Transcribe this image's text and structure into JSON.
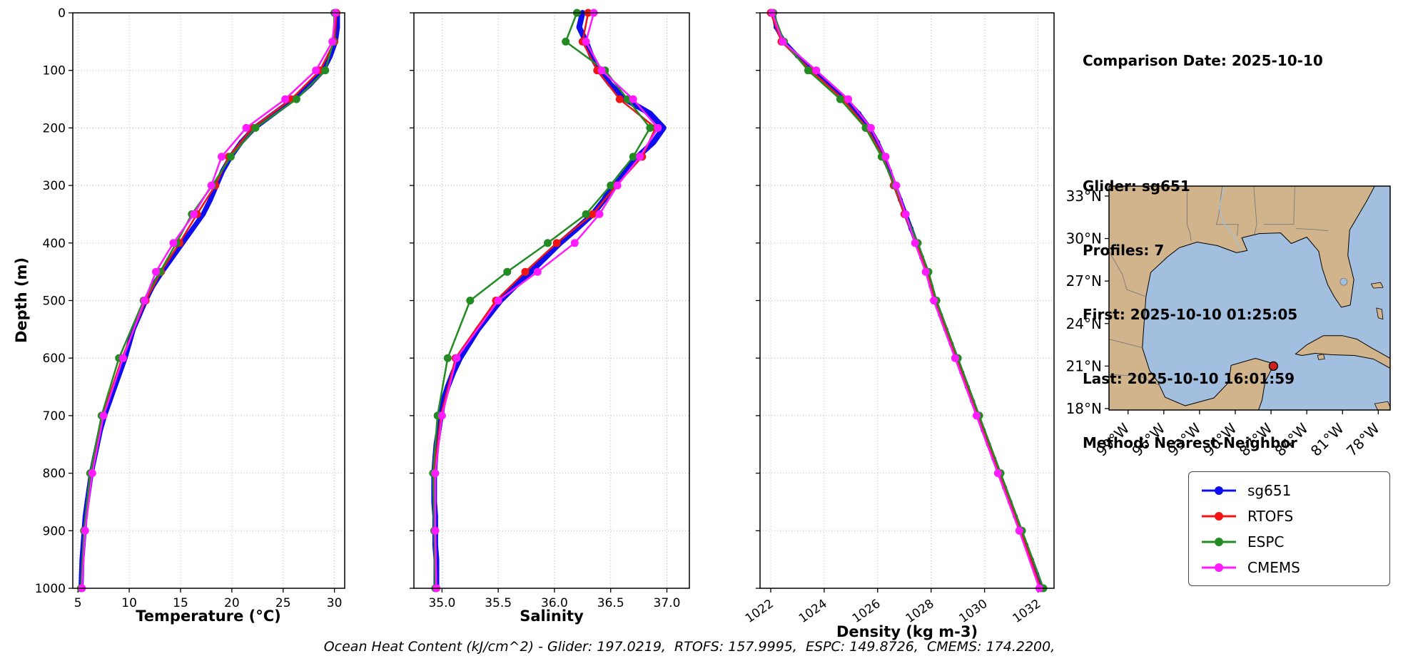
{
  "info": {
    "comparison_date": "Comparison Date: 2025-10-10",
    "glider": "Glider: sg651",
    "profiles": "Profiles: 7",
    "first": "First: 2025-10-10 01:25:05",
    "last": "Last: 2025-10-10 16:01:59",
    "method": "Method: Nearest-Neighbor"
  },
  "footer": {
    "ohc": "Ocean Heat Content (kJ/cm^2) - Glider: 197.0219,  RTOFS: 157.9995,  ESPC: 149.8726,  CMEMS: 174.2200,"
  },
  "legend": {
    "entries": [
      {
        "label": "sg651",
        "color": "#0d0df0"
      },
      {
        "label": "RTOFS",
        "color": "#f01414"
      },
      {
        "label": "ESPC",
        "color": "#228b22"
      },
      {
        "label": "CMEMS",
        "color": "#ff1aff"
      }
    ]
  },
  "chart_data": [
    {
      "type": "line",
      "id": "temperature",
      "xlabel": "Temperature (°C)",
      "ylabel": "Depth (m)",
      "xlim": [
        4.5,
        31
      ],
      "ylim": [
        0,
        1000
      ],
      "grid": true,
      "show_y_tick_labels": true,
      "x_ticks": [
        {
          "v": 5,
          "label": "5"
        },
        {
          "v": 10,
          "label": "10"
        },
        {
          "v": 15,
          "label": "15"
        },
        {
          "v": 20,
          "label": "20"
        },
        {
          "v": 25,
          "label": "25"
        },
        {
          "v": 30,
          "label": "30"
        }
      ],
      "y_ticks": [
        {
          "v": 0,
          "label": "0"
        },
        {
          "v": 100,
          "label": "100"
        },
        {
          "v": 200,
          "label": "200"
        },
        {
          "v": 300,
          "label": "300"
        },
        {
          "v": 400,
          "label": "400"
        },
        {
          "v": 500,
          "label": "500"
        },
        {
          "v": 600,
          "label": "600"
        },
        {
          "v": 700,
          "label": "700"
        },
        {
          "v": 800,
          "label": "800"
        },
        {
          "v": 900,
          "label": "900"
        },
        {
          "v": 1000,
          "label": "1000"
        }
      ],
      "series": [
        {
          "name": "sg651",
          "color": "#0d0df0",
          "line_width": 7,
          "marker_size": 3.5,
          "depths": [
            0,
            25,
            50,
            75,
            100,
            125,
            150,
            175,
            200,
            225,
            250,
            275,
            300,
            325,
            350,
            375,
            400,
            425,
            450,
            475,
            500,
            525,
            550,
            575,
            600,
            625,
            650,
            675,
            700,
            725,
            750,
            775,
            800,
            825,
            850,
            875,
            900,
            925,
            950,
            975,
            1000
          ],
          "values": [
            30.3,
            30.3,
            30.1,
            29.6,
            28.9,
            27.6,
            26.0,
            24.1,
            22.2,
            20.9,
            19.9,
            19.1,
            18.5,
            17.9,
            17.2,
            16.2,
            15.2,
            14.2,
            13.2,
            12.3,
            11.6,
            11.0,
            10.4,
            10.0,
            9.6,
            9.1,
            8.6,
            8.1,
            7.6,
            7.2,
            6.9,
            6.6,
            6.3,
            6.1,
            5.9,
            5.7,
            5.6,
            5.5,
            5.4,
            5.35,
            5.3
          ]
        },
        {
          "name": "RTOFS",
          "color": "#f01414",
          "line_width": 2.5,
          "marker_size": 5.5,
          "depths": [
            0,
            50,
            100,
            150,
            200,
            250,
            300,
            350,
            400,
            450,
            500,
            600,
            700,
            800,
            900,
            1000
          ],
          "values": [
            30.2,
            30.0,
            28.6,
            25.8,
            22.0,
            19.7,
            18.4,
            16.6,
            14.9,
            13.1,
            11.6,
            9.3,
            7.4,
            6.2,
            5.6,
            5.3
          ]
        },
        {
          "name": "ESPC",
          "color": "#228b22",
          "line_width": 2.5,
          "marker_size": 5.5,
          "depths": [
            0,
            50,
            100,
            150,
            200,
            250,
            300,
            350,
            400,
            450,
            500,
            600,
            700,
            800,
            900,
            1000
          ],
          "values": [
            30.0,
            29.9,
            29.1,
            26.3,
            22.3,
            19.9,
            18.1,
            16.1,
            14.6,
            13.0,
            11.4,
            9.0,
            7.3,
            6.2,
            5.6,
            5.3
          ]
        },
        {
          "name": "CMEMS",
          "color": "#ff1aff",
          "line_width": 2.5,
          "marker_size": 5.5,
          "depths": [
            0,
            50,
            100,
            150,
            200,
            250,
            300,
            350,
            400,
            450,
            500,
            600,
            700,
            800,
            900,
            1000
          ],
          "values": [
            30.1,
            29.8,
            28.2,
            25.2,
            21.4,
            19.0,
            18.0,
            16.3,
            14.3,
            12.6,
            11.5,
            9.4,
            7.5,
            6.4,
            5.7,
            5.4
          ]
        }
      ]
    },
    {
      "type": "line",
      "id": "salinity",
      "xlabel": "Salinity",
      "ylabel": "Depth (m)",
      "xlim": [
        34.75,
        37.2
      ],
      "ylim": [
        0,
        1000
      ],
      "grid": true,
      "show_y_tick_labels": false,
      "x_ticks": [
        {
          "v": 35.0,
          "label": "35.0"
        },
        {
          "v": 35.5,
          "label": "35.5"
        },
        {
          "v": 36.0,
          "label": "36.0"
        },
        {
          "v": 36.5,
          "label": "36.5"
        },
        {
          "v": 37.0,
          "label": "37.0"
        }
      ],
      "y_ticks": [
        {
          "v": 0,
          "label": "0"
        },
        {
          "v": 100,
          "label": "100"
        },
        {
          "v": 200,
          "label": "200"
        },
        {
          "v": 300,
          "label": "300"
        },
        {
          "v": 400,
          "label": "400"
        },
        {
          "v": 500,
          "label": "500"
        },
        {
          "v": 600,
          "label": "600"
        },
        {
          "v": 700,
          "label": "700"
        },
        {
          "v": 800,
          "label": "800"
        },
        {
          "v": 900,
          "label": "900"
        },
        {
          "v": 1000,
          "label": "1000"
        }
      ],
      "series": [
        {
          "name": "sg651",
          "color": "#0d0df0",
          "line_width": 8,
          "marker_size": 3.5,
          "depths": [
            0,
            25,
            50,
            75,
            100,
            125,
            150,
            175,
            200,
            225,
            250,
            275,
            300,
            325,
            350,
            375,
            400,
            425,
            450,
            475,
            500,
            525,
            550,
            575,
            600,
            625,
            650,
            675,
            700,
            725,
            750,
            775,
            800,
            825,
            850,
            875,
            900,
            925,
            950,
            975,
            1000
          ],
          "values": [
            36.25,
            36.22,
            36.28,
            36.33,
            36.4,
            36.5,
            36.63,
            36.85,
            36.97,
            36.88,
            36.74,
            36.62,
            36.52,
            36.44,
            36.34,
            36.2,
            36.05,
            35.92,
            35.79,
            35.65,
            35.52,
            35.42,
            35.32,
            35.24,
            35.16,
            35.1,
            35.05,
            35.01,
            34.99,
            34.97,
            34.95,
            34.94,
            34.93,
            34.93,
            34.93,
            34.94,
            34.94,
            34.94,
            34.95,
            34.95,
            34.95
          ]
        },
        {
          "name": "RTOFS",
          "color": "#f01414",
          "line_width": 2.5,
          "marker_size": 5.5,
          "depths": [
            0,
            50,
            100,
            150,
            200,
            250,
            300,
            350,
            400,
            450,
            500,
            600,
            700,
            800,
            900,
            1000
          ],
          "values": [
            36.3,
            36.25,
            36.38,
            36.58,
            36.9,
            36.78,
            36.55,
            36.34,
            36.02,
            35.74,
            35.48,
            35.12,
            34.99,
            34.93,
            34.94,
            34.95
          ]
        },
        {
          "name": "ESPC",
          "color": "#228b22",
          "line_width": 2.5,
          "marker_size": 5.5,
          "depths": [
            0,
            50,
            100,
            150,
            200,
            250,
            300,
            350,
            400,
            450,
            500,
            600,
            700,
            800,
            900,
            1000
          ],
          "values": [
            36.2,
            36.1,
            36.45,
            36.65,
            36.85,
            36.7,
            36.5,
            36.28,
            35.94,
            35.58,
            35.25,
            35.05,
            34.96,
            34.92,
            34.93,
            34.94
          ]
        },
        {
          "name": "CMEMS",
          "color": "#ff1aff",
          "line_width": 2.5,
          "marker_size": 5.5,
          "depths": [
            0,
            50,
            100,
            150,
            200,
            250,
            300,
            350,
            400,
            450,
            500,
            600,
            700,
            800,
            900,
            1000
          ],
          "values": [
            36.35,
            36.28,
            36.42,
            36.7,
            36.92,
            36.76,
            36.56,
            36.4,
            36.18,
            35.85,
            35.5,
            35.13,
            35.0,
            34.94,
            34.94,
            34.95
          ]
        }
      ]
    },
    {
      "type": "line",
      "id": "density",
      "xlabel": "Density (kg m-3)",
      "ylabel": "Depth (m)",
      "xlim": [
        1021.6,
        1032.6
      ],
      "ylim": [
        0,
        1000
      ],
      "grid": true,
      "show_y_tick_labels": false,
      "x_tick_rotation": 35,
      "x_ticks": [
        {
          "v": 1022,
          "label": "1022"
        },
        {
          "v": 1024,
          "label": "1024"
        },
        {
          "v": 1026,
          "label": "1026"
        },
        {
          "v": 1028,
          "label": "1028"
        },
        {
          "v": 1030,
          "label": "1030"
        },
        {
          "v": 1032,
          "label": "1032"
        }
      ],
      "y_ticks": [
        {
          "v": 0,
          "label": "0"
        },
        {
          "v": 100,
          "label": "100"
        },
        {
          "v": 200,
          "label": "200"
        },
        {
          "v": 300,
          "label": "300"
        },
        {
          "v": 400,
          "label": "400"
        },
        {
          "v": 500,
          "label": "500"
        },
        {
          "v": 600,
          "label": "600"
        },
        {
          "v": 700,
          "label": "700"
        },
        {
          "v": 800,
          "label": "800"
        },
        {
          "v": 900,
          "label": "900"
        },
        {
          "v": 1000,
          "label": "1000"
        }
      ],
      "series": [
        {
          "name": "sg651",
          "color": "#0d0df0",
          "line_width": 6,
          "marker_size": 3.5,
          "depths": [
            0,
            25,
            50,
            75,
            100,
            125,
            150,
            175,
            200,
            225,
            250,
            275,
            300,
            325,
            350,
            375,
            400,
            425,
            450,
            475,
            500,
            525,
            550,
            575,
            600,
            625,
            650,
            675,
            700,
            725,
            750,
            775,
            800,
            825,
            850,
            875,
            900,
            925,
            950,
            975,
            1000
          ],
          "values": [
            1022.1,
            1022.2,
            1022.5,
            1023.0,
            1023.6,
            1024.2,
            1024.8,
            1025.3,
            1025.7,
            1026.0,
            1026.25,
            1026.45,
            1026.65,
            1026.85,
            1027.05,
            1027.25,
            1027.45,
            1027.65,
            1027.85,
            1028.0,
            1028.15,
            1028.35,
            1028.55,
            1028.75,
            1028.95,
            1029.15,
            1029.35,
            1029.55,
            1029.75,
            1029.95,
            1030.15,
            1030.35,
            1030.55,
            1030.75,
            1030.95,
            1031.15,
            1031.35,
            1031.55,
            1031.75,
            1031.95,
            1032.15
          ]
        },
        {
          "name": "RTOFS",
          "color": "#f01414",
          "line_width": 2.5,
          "marker_size": 5.5,
          "depths": [
            0,
            50,
            100,
            150,
            200,
            250,
            300,
            350,
            400,
            450,
            500,
            600,
            700,
            800,
            900,
            1000
          ],
          "values": [
            1022.0,
            1022.4,
            1023.5,
            1024.7,
            1025.6,
            1026.2,
            1026.6,
            1027.0,
            1027.45,
            1027.85,
            1028.15,
            1028.95,
            1029.75,
            1030.55,
            1031.35,
            1032.1
          ]
        },
        {
          "name": "ESPC",
          "color": "#228b22",
          "line_width": 2.5,
          "marker_size": 5.5,
          "depths": [
            0,
            50,
            100,
            150,
            200,
            250,
            300,
            350,
            400,
            450,
            500,
            600,
            700,
            800,
            900,
            1000
          ],
          "values": [
            1022.1,
            1022.5,
            1023.4,
            1024.6,
            1025.55,
            1026.15,
            1026.65,
            1027.05,
            1027.5,
            1027.9,
            1028.2,
            1029.0,
            1029.8,
            1030.6,
            1031.4,
            1032.2
          ]
        },
        {
          "name": "CMEMS",
          "color": "#ff1aff",
          "line_width": 2.5,
          "marker_size": 5.5,
          "depths": [
            0,
            50,
            100,
            150,
            200,
            250,
            300,
            350,
            400,
            450,
            500,
            600,
            700,
            800,
            900,
            1000
          ],
          "values": [
            1022.05,
            1022.45,
            1023.7,
            1024.9,
            1025.75,
            1026.3,
            1026.7,
            1027.05,
            1027.4,
            1027.8,
            1028.1,
            1028.9,
            1029.7,
            1030.5,
            1031.3,
            1032.05
          ]
        }
      ]
    },
    {
      "type": "map",
      "id": "location-map",
      "lon_range": [
        -100.6,
        -77.0
      ],
      "lat_range": [
        17.9,
        33.7
      ],
      "land_color": "#d2b48c",
      "water_color": "#a3bfdf",
      "x_ticks": [
        {
          "v": -99,
          "label": "99°W"
        },
        {
          "v": -96,
          "label": "96°W"
        },
        {
          "v": -93,
          "label": "93°W"
        },
        {
          "v": -90,
          "label": "90°W"
        },
        {
          "v": -87,
          "label": "87°W"
        },
        {
          "v": -84,
          "label": "84°W"
        },
        {
          "v": -81,
          "label": "81°W"
        },
        {
          "v": -78,
          "label": "78°W"
        }
      ],
      "y_ticks": [
        {
          "v": 18,
          "label": "18°N"
        },
        {
          "v": 21,
          "label": "21°N"
        },
        {
          "v": 24,
          "label": "24°N"
        },
        {
          "v": 27,
          "label": "27°N"
        },
        {
          "v": 30,
          "label": "30°N"
        },
        {
          "v": 33,
          "label": "33°N"
        }
      ],
      "marker": {
        "lon": -86.8,
        "lat": 21.0,
        "color": "#cc2222"
      }
    }
  ]
}
